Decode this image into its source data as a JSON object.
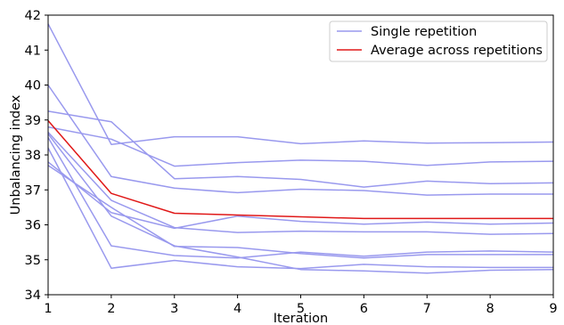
{
  "chart_data": {
    "type": "line",
    "xlabel": "Iteration",
    "ylabel": "Unbalancing index",
    "xlim": [
      1,
      9
    ],
    "ylim": [
      34,
      42
    ],
    "x": [
      1,
      2,
      3,
      4,
      5,
      6,
      7,
      8,
      9
    ],
    "xticks": [
      "1",
      "2",
      "3",
      "4",
      "5",
      "6",
      "7",
      "8",
      "9"
    ],
    "yticks": [
      "34",
      "35",
      "36",
      "37",
      "38",
      "39",
      "40",
      "41",
      "42"
    ],
    "grid": false,
    "legend_position": "top-right",
    "legend": [
      "Single repetition",
      "Average across repetitions"
    ],
    "colors": {
      "single": "#9999ee",
      "average": "#e01818"
    },
    "repetitions": [
      {
        "values": [
          41.75,
          38.3,
          38.52,
          38.52,
          38.32,
          38.4,
          38.34,
          38.35,
          38.37
        ]
      },
      {
        "values": [
          39.25,
          38.95,
          37.32,
          37.38,
          37.3,
          37.08,
          37.25,
          37.18,
          37.2
        ]
      },
      {
        "values": [
          38.8,
          38.45,
          37.68,
          37.78,
          37.85,
          37.82,
          37.7,
          37.8,
          37.82
        ]
      },
      {
        "values": [
          40.0,
          37.38,
          37.05,
          36.92,
          37.02,
          36.98,
          36.85,
          36.88,
          36.88
        ]
      },
      {
        "values": [
          38.65,
          36.7,
          35.92,
          35.78,
          35.82,
          35.8,
          35.8,
          35.73,
          35.75
        ]
      },
      {
        "values": [
          37.8,
          36.35,
          35.9,
          36.25,
          36.1,
          36.02,
          36.08,
          36.02,
          36.05
        ]
      },
      {
        "values": [
          37.7,
          36.5,
          35.38,
          35.35,
          35.18,
          35.05,
          35.15,
          35.15,
          35.15
        ]
      },
      {
        "values": [
          38.5,
          35.4,
          35.12,
          35.05,
          35.22,
          35.1,
          35.22,
          35.25,
          35.22
        ]
      },
      {
        "values": [
          38.2,
          34.76,
          34.98,
          34.8,
          34.75,
          34.87,
          34.8,
          34.78,
          34.78
        ]
      },
      {
        "values": [
          38.6,
          36.25,
          35.4,
          35.08,
          34.72,
          34.68,
          34.62,
          34.7,
          34.72
        ]
      }
    ],
    "average": {
      "values": [
        38.98,
        36.9,
        36.33,
        36.28,
        36.23,
        36.18,
        36.18,
        36.18,
        36.18
      ]
    }
  }
}
